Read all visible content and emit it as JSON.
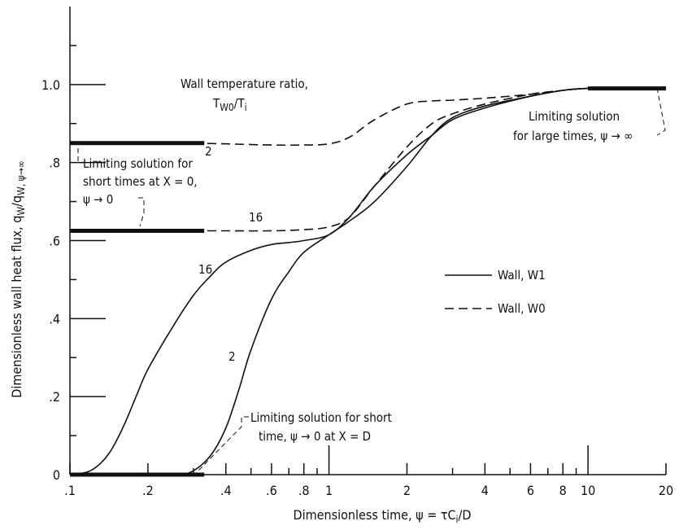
{
  "chart_data": {
    "type": "line",
    "title": "",
    "xlabel": "Dimensionless time, ψ = τC",
    "xlabel_sub": "i",
    "xlabel_tail": "/D",
    "ylabel": "Dimensionless wall heat flux, q",
    "ylabel_sub1": "W",
    "ylabel_mid": "/q",
    "ylabel_sub2": "W, ψ→∞",
    "xscale": "log",
    "xlim": [
      0.1,
      20
    ],
    "ylim": [
      0,
      1.2
    ],
    "x_ticklabels": [
      {
        "x": 0.1,
        "label": ".1"
      },
      {
        "x": 0.2,
        "label": ".2"
      },
      {
        "x": 0.4,
        "label": ".4"
      },
      {
        "x": 0.6,
        "label": ".6"
      },
      {
        "x": 0.8,
        "label": ".8"
      },
      {
        "x": 1,
        "label": "1"
      },
      {
        "x": 2,
        "label": "2"
      },
      {
        "x": 4,
        "label": "4"
      },
      {
        "x": 6,
        "label": "6"
      },
      {
        "x": 8,
        "label": "8"
      },
      {
        "x": 10,
        "label": "10"
      },
      {
        "x": 20,
        "label": "20"
      }
    ],
    "y_ticklabels": [
      {
        "y": 0,
        "label": "0"
      },
      {
        "y": 0.2,
        "label": ".2"
      },
      {
        "y": 0.4,
        "label": ".4"
      },
      {
        "y": 0.6,
        "label": ".6"
      },
      {
        "y": 0.8,
        "label": ".8"
      },
      {
        "y": 1.0,
        "label": "1.0"
      }
    ],
    "param_heading": "Wall temperature ratio,",
    "param_symbol": "T",
    "param_symbol_sub1": "W0",
    "param_symbol_mid": "/T",
    "param_symbol_sub2": "i",
    "legend": [
      {
        "label": "Wall, W1",
        "style": "solid"
      },
      {
        "label": "Wall, W0",
        "style": "dashed"
      }
    ],
    "series": [
      {
        "name": "Wall, W1",
        "ratio": "16",
        "style": "solid",
        "points": [
          [
            0.1,
            0.0
          ],
          [
            0.12,
            0.01
          ],
          [
            0.14,
            0.05
          ],
          [
            0.16,
            0.12
          ],
          [
            0.18,
            0.2
          ],
          [
            0.2,
            0.27
          ],
          [
            0.25,
            0.38
          ],
          [
            0.3,
            0.46
          ],
          [
            0.35,
            0.51
          ],
          [
            0.4,
            0.545
          ],
          [
            0.5,
            0.575
          ],
          [
            0.6,
            0.59
          ],
          [
            0.7,
            0.595
          ],
          [
            0.8,
            0.6
          ],
          [
            1.0,
            0.615
          ],
          [
            1.2,
            0.66
          ],
          [
            1.5,
            0.74
          ],
          [
            2.0,
            0.82
          ],
          [
            2.5,
            0.87
          ],
          [
            3.0,
            0.91
          ],
          [
            4.0,
            0.94
          ],
          [
            6.0,
            0.97
          ],
          [
            8.0,
            0.985
          ],
          [
            10.0,
            0.99
          ],
          [
            15.0,
            0.99
          ],
          [
            20.0,
            0.99
          ]
        ]
      },
      {
        "name": "Wall, W1",
        "ratio": "2",
        "style": "solid",
        "points": [
          [
            0.1,
            0.0
          ],
          [
            0.2,
            0.0
          ],
          [
            0.26,
            0.0
          ],
          [
            0.3,
            0.01
          ],
          [
            0.35,
            0.05
          ],
          [
            0.4,
            0.12
          ],
          [
            0.45,
            0.22
          ],
          [
            0.5,
            0.32
          ],
          [
            0.6,
            0.45
          ],
          [
            0.7,
            0.52
          ],
          [
            0.8,
            0.57
          ],
          [
            1.0,
            0.615
          ],
          [
            1.2,
            0.65
          ],
          [
            1.5,
            0.7
          ],
          [
            2.0,
            0.79
          ],
          [
            2.5,
            0.87
          ],
          [
            3.0,
            0.915
          ],
          [
            4.0,
            0.945
          ],
          [
            6.0,
            0.97
          ],
          [
            8.0,
            0.985
          ],
          [
            10.0,
            0.99
          ],
          [
            15.0,
            0.99
          ],
          [
            20.0,
            0.99
          ]
        ]
      },
      {
        "name": "Wall, W0",
        "ratio": "16",
        "style": "dashed",
        "points": [
          [
            0.3,
            0.625
          ],
          [
            0.4,
            0.625
          ],
          [
            0.6,
            0.625
          ],
          [
            0.8,
            0.628
          ],
          [
            1.0,
            0.635
          ],
          [
            1.2,
            0.66
          ],
          [
            1.5,
            0.74
          ],
          [
            2.0,
            0.84
          ],
          [
            2.5,
            0.9
          ],
          [
            3.0,
            0.925
          ],
          [
            4.0,
            0.95
          ],
          [
            6.0,
            0.975
          ],
          [
            8.0,
            0.985
          ],
          [
            10.0,
            0.99
          ],
          [
            15.0,
            0.99
          ],
          [
            20.0,
            0.99
          ]
        ]
      },
      {
        "name": "Wall, W0",
        "ratio": "2",
        "style": "dashed",
        "points": [
          [
            0.3,
            0.85
          ],
          [
            0.4,
            0.848
          ],
          [
            0.6,
            0.845
          ],
          [
            0.8,
            0.845
          ],
          [
            1.0,
            0.848
          ],
          [
            1.2,
            0.865
          ],
          [
            1.5,
            0.91
          ],
          [
            2.0,
            0.95
          ],
          [
            2.5,
            0.958
          ],
          [
            3.0,
            0.96
          ],
          [
            4.0,
            0.965
          ],
          [
            6.0,
            0.975
          ],
          [
            8.0,
            0.985
          ],
          [
            10.0,
            0.99
          ],
          [
            15.0,
            0.99
          ],
          [
            20.0,
            0.99
          ]
        ]
      }
    ],
    "limiting_segments": [
      {
        "x0": 0.1,
        "x1": 0.33,
        "y": 0.85
      },
      {
        "x0": 0.1,
        "x1": 0.33,
        "y": 0.625
      },
      {
        "x0": 0.1,
        "x1": 0.33,
        "y": 0.0
      },
      {
        "x0": 10,
        "x1": 20,
        "y": 0.99
      }
    ],
    "annotations": {
      "short_x0_line1": "Limiting solution for",
      "short_x0_line2": "short times at  X = 0,",
      "short_x0_line3": "ψ → 0",
      "short_xd_line1": "Limiting solution for short",
      "short_xd_line2": "time,  ψ → 0  at  X = D",
      "large_line1": "Limiting solution",
      "large_line2": "for large times,  ψ → ∞",
      "label_2_w0": "2",
      "label_16_w0": "16",
      "label_16_w1": "16",
      "label_2_w1": "2"
    }
  }
}
